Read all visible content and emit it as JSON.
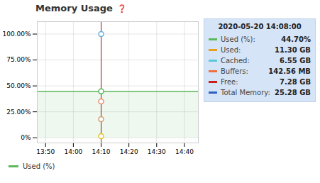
{
  "chart_data": {
    "type": "line",
    "title": "Memory Usage",
    "annotations": [
      {
        "text": "❓",
        "color": "#5b9bd5"
      }
    ],
    "xlim": [
      -0.3,
      5.5
    ],
    "xticks": [
      {
        "value": 0,
        "label": "13:50"
      },
      {
        "value": 1,
        "label": "14:00"
      },
      {
        "value": 2,
        "label": "14:10"
      },
      {
        "value": 3,
        "label": "14:20"
      },
      {
        "value": 4,
        "label": "14:30"
      },
      {
        "value": 5,
        "label": "14:40"
      }
    ],
    "ylim": [
      -5,
      112
    ],
    "yticks": [
      {
        "value": 0,
        "label": "0%"
      },
      {
        "value": 25,
        "label": "25.00%"
      },
      {
        "value": 50,
        "label": "50.00%"
      },
      {
        "value": 75,
        "label": "75.00%"
      },
      {
        "value": 100,
        "label": "100.00%"
      }
    ],
    "grid": true,
    "legend": "bottom left",
    "series": [
      {
        "name": "Used (%)",
        "color": "#5cb85c",
        "x": [
          -0.3,
          5.5
        ],
        "values": [
          44.7,
          44.7
        ]
      }
    ],
    "cursor": {
      "x": 2,
      "color": "#8b1a1a"
    },
    "markers": [
      {
        "x": 2,
        "y": 100,
        "color": "#6aafe0"
      },
      {
        "x": 2,
        "y": 44.7,
        "color": "#5cb85c"
      },
      {
        "x": 2,
        "y": 35,
        "color": "#f09070"
      },
      {
        "x": 2,
        "y": 18,
        "color": "#d0a070"
      },
      {
        "x": 2,
        "y": 1.5,
        "color": "#e8c020"
      }
    ],
    "tooltip": {
      "title": "2020-05-20 14:08:00",
      "color": "#d6e4f7",
      "border_color": "#c0d0e8",
      "items": [
        {
          "label": "Used (%):",
          "value": "44.70%",
          "color": "#5cb85c"
        },
        {
          "label": "Used:",
          "value": "11.30 GB",
          "color": "#e8a020"
        },
        {
          "label": "Cached:",
          "value": "6.55 GB",
          "color": "#5bc8d8"
        },
        {
          "label": "Buffers:",
          "value": "142.56 MB",
          "color": "#f07040"
        },
        {
          "label": "Free:",
          "value": "7.28 GB",
          "color": "#cc2020"
        },
        {
          "label": "Total Memory:",
          "value": "25.28 GB",
          "color": "#3060c0"
        }
      ]
    }
  }
}
